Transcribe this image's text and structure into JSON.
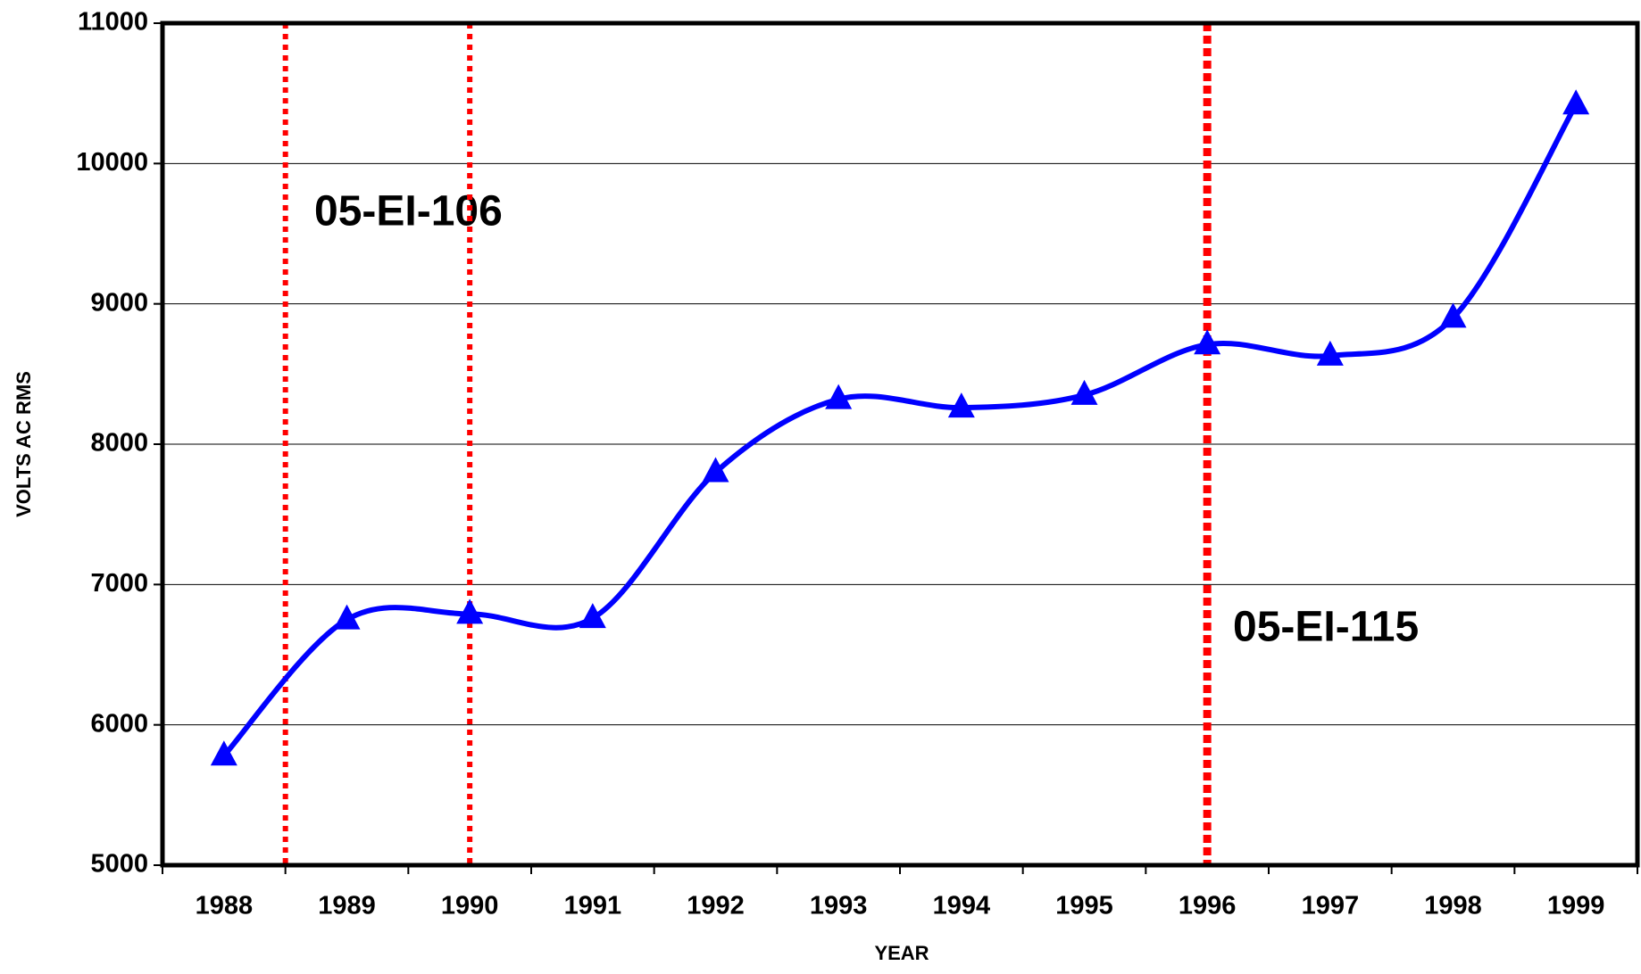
{
  "chart_data": {
    "type": "line",
    "categories": [
      "1988",
      "1989",
      "1990",
      "1991",
      "1992",
      "1993",
      "1994",
      "1995",
      "1996",
      "1997",
      "1998",
      "1999"
    ],
    "series": [
      {
        "color": "#0000ff",
        "values": [
          5780,
          6750,
          6790,
          6760,
          7800,
          8320,
          8260,
          8350,
          8710,
          8630,
          8900,
          10420
        ]
      }
    ],
    "ylim": [
      5000,
      11000
    ],
    "yticks": [
      5000,
      6000,
      7000,
      8000,
      9000,
      10000,
      11000
    ],
    "grid": true,
    "xlabel": "YEAR",
    "ylabel": "VOLTS AC RMS",
    "annotations": [
      "05-EI-106",
      "05-EI-115"
    ],
    "annotation_color": "#ff0000",
    "marker": "triangle"
  }
}
